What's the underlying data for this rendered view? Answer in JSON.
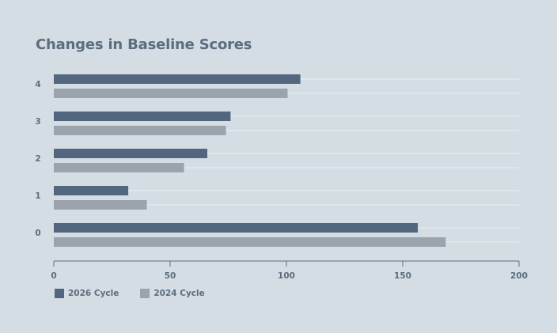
{
  "chart_data": {
    "type": "bar",
    "orientation": "horizontal",
    "title": "Changes in Baseline Scores",
    "xlabel": "",
    "ylabel": "",
    "categories": [
      "0",
      "1",
      "2",
      "3",
      "4"
    ],
    "series": [
      {
        "name": "2026 Cycle",
        "color": "#52667d",
        "values": [
          156.5,
          32,
          66,
          76,
          106
        ]
      },
      {
        "name": "2024 Cycle",
        "color": "#9ba3ad",
        "values": [
          168.5,
          40,
          56,
          74,
          100.5
        ]
      }
    ],
    "xlim": [
      0,
      200
    ],
    "xticks": [
      "0",
      "50",
      "100",
      "150",
      "200"
    ],
    "grid": true,
    "legend_position": "bottom-left"
  }
}
